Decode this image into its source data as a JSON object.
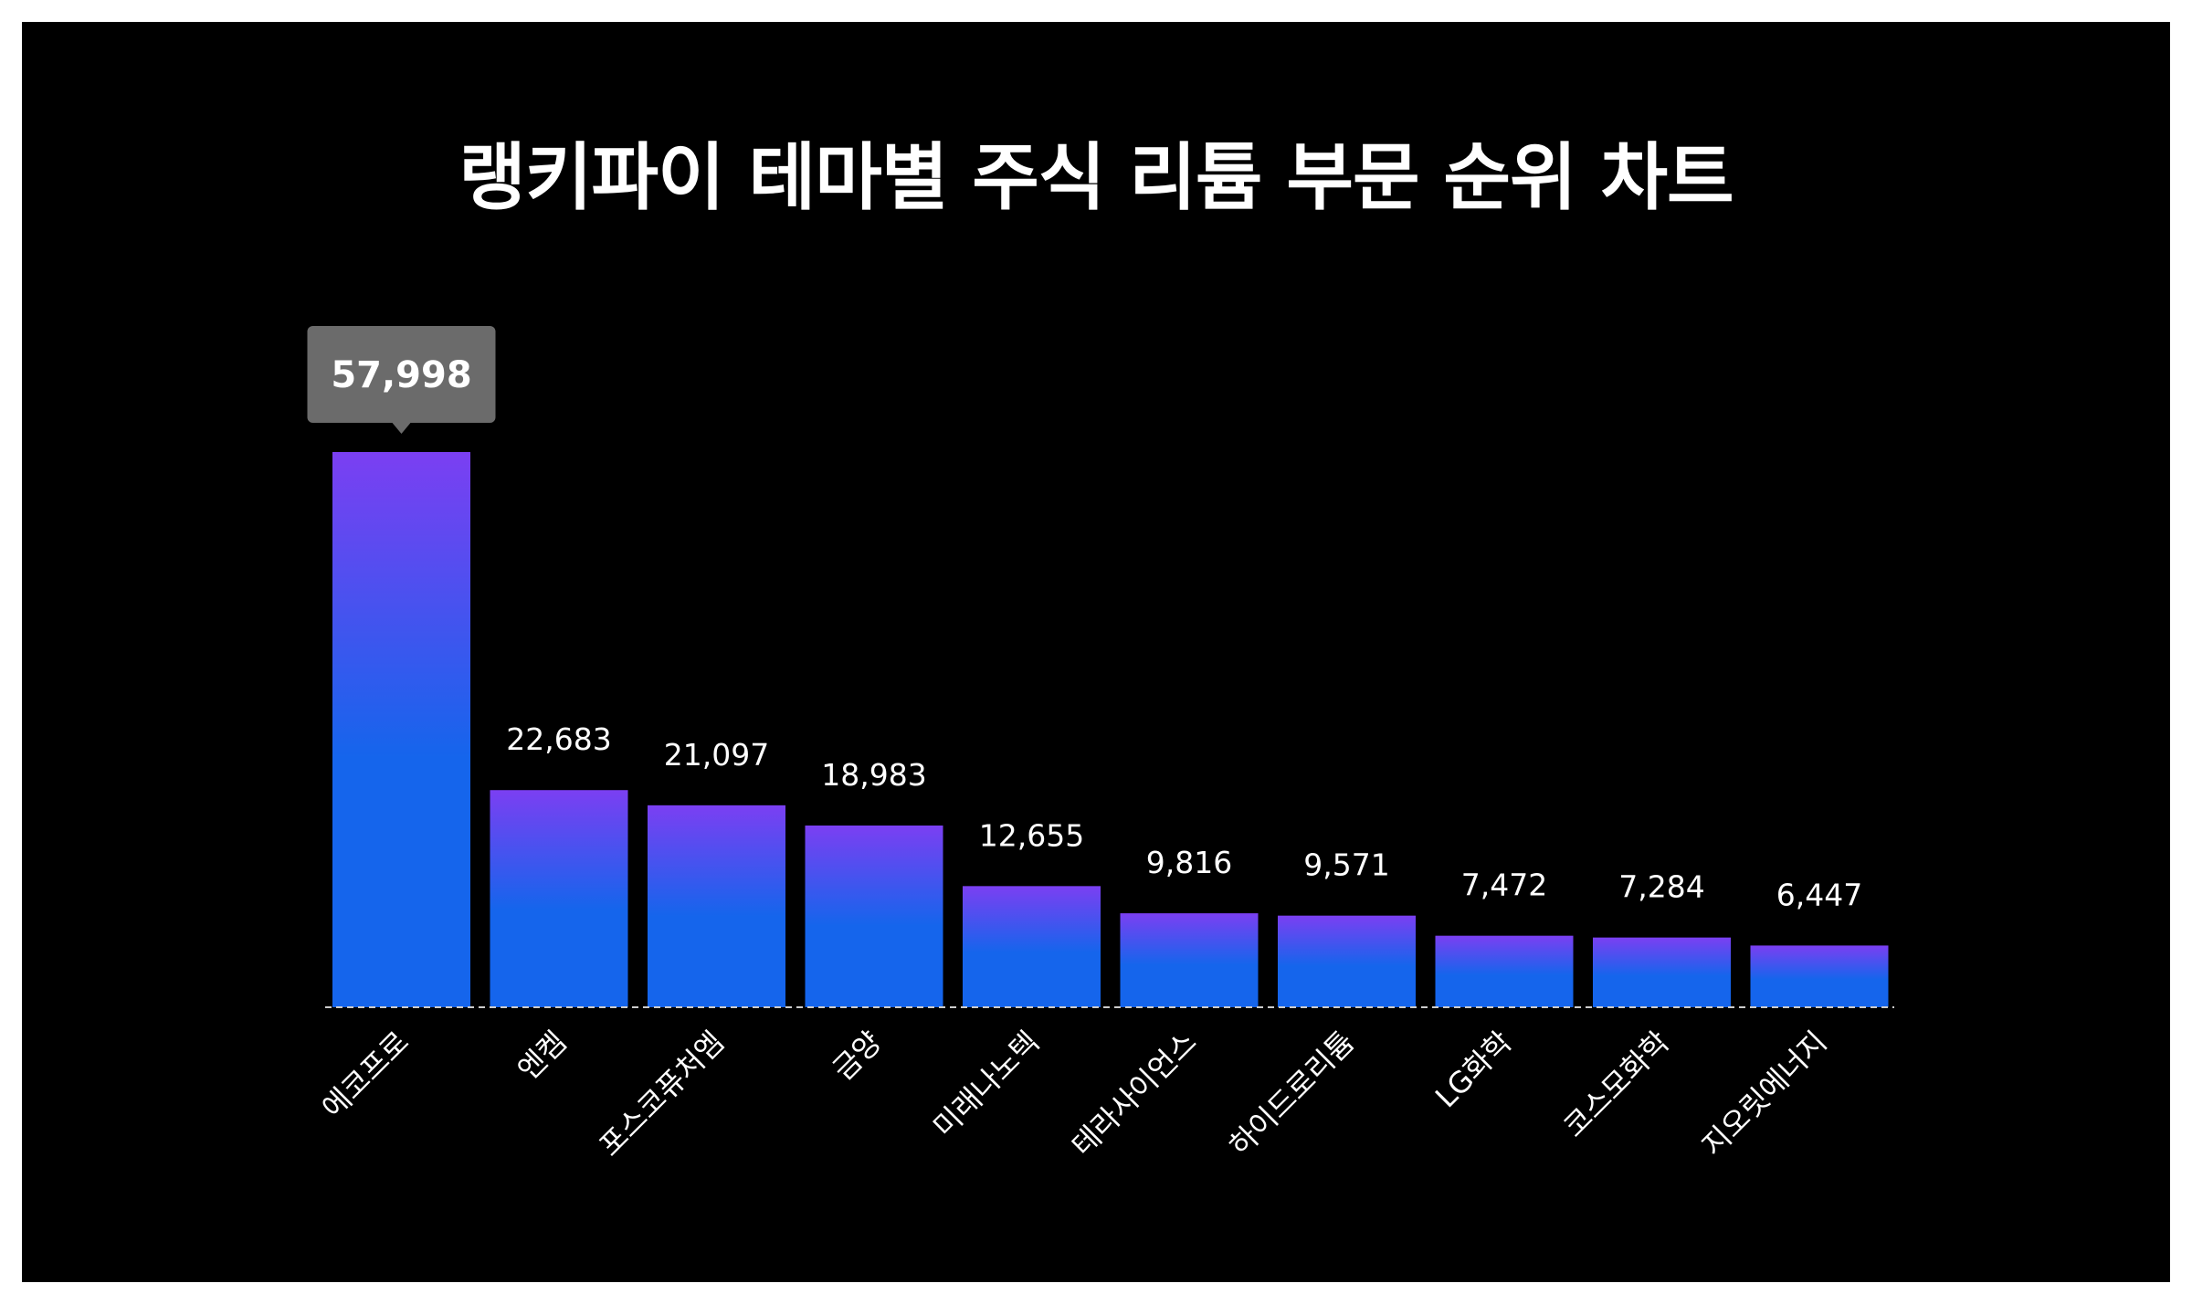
{
  "title": "랭키파이 테마별 주식 리튬 부문 순위 차트",
  "colors": {
    "background": "#000000",
    "bar_top": "#7b3ff2",
    "bar_bottom": "#1565ec",
    "callout": "#6b6b6b",
    "text": "#ffffff",
    "baseline": "#cccccc"
  },
  "chart_data": {
    "type": "bar",
    "categories": [
      "에코프로",
      "엔켐",
      "포스코퓨처엠",
      "금양",
      "미래나노텍",
      "테라사이언스",
      "하이드로리튬",
      "LG화학",
      "코스모화학",
      "지오릿에너지"
    ],
    "values": [
      57998,
      22683,
      21097,
      18983,
      12655,
      9816,
      9571,
      7472,
      7284,
      6447
    ],
    "value_labels": [
      "57,998",
      "22,683",
      "21,097",
      "18,983",
      "12,655",
      "9,816",
      "9,571",
      "7,472",
      "7,284",
      "6,447"
    ],
    "title": "랭키파이 테마별 주식 리튬 부문 순위 차트",
    "xlabel": "",
    "ylabel": "",
    "ylim": [
      0,
      57998
    ],
    "grid": false,
    "legend": "none",
    "highlight_index": 0
  }
}
